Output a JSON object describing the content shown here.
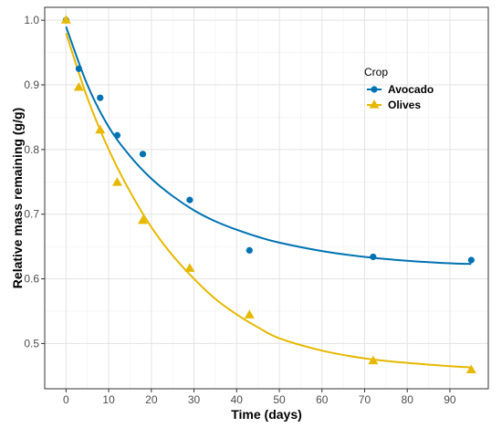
{
  "chart_data": {
    "type": "scatter",
    "title": "",
    "xlabel": "Time (days)",
    "ylabel": "Relative mass remaining (g/g)",
    "xlim": [
      -5,
      99
    ],
    "ylim": [
      0.43,
      1.02
    ],
    "x_ticks": [
      0,
      10,
      20,
      30,
      40,
      50,
      60,
      70,
      80,
      90
    ],
    "y_ticks": [
      0.5,
      0.6,
      0.7,
      0.8,
      0.9,
      1.0
    ],
    "x_tick_labels": [
      "0",
      "10",
      "20",
      "30",
      "40",
      "50",
      "60",
      "70",
      "80",
      "90"
    ],
    "y_tick_labels": [
      "0.5",
      "0.6",
      "0.7",
      "0.8",
      "0.9",
      "1.0"
    ],
    "grid": true,
    "legend": {
      "title": "Crop",
      "position": "top-right-inside"
    },
    "series": [
      {
        "name": "Avocado",
        "color": "#0072B2",
        "marker": "circle",
        "points": [
          {
            "x": 0,
            "y": 1.0
          },
          {
            "x": 3,
            "y": 0.925
          },
          {
            "x": 8,
            "y": 0.88
          },
          {
            "x": 12,
            "y": 0.822
          },
          {
            "x": 18,
            "y": 0.793
          },
          {
            "x": 29,
            "y": 0.722
          },
          {
            "x": 43,
            "y": 0.644
          },
          {
            "x": 72,
            "y": 0.634
          },
          {
            "x": 95,
            "y": 0.629
          }
        ],
        "fit": [
          {
            "x": 0,
            "y": 0.99
          },
          {
            "x": 5,
            "y": 0.9
          },
          {
            "x": 10,
            "y": 0.835
          },
          {
            "x": 15,
            "y": 0.79
          },
          {
            "x": 20,
            "y": 0.755
          },
          {
            "x": 25,
            "y": 0.728
          },
          {
            "x": 30,
            "y": 0.706
          },
          {
            "x": 35,
            "y": 0.689
          },
          {
            "x": 40,
            "y": 0.676
          },
          {
            "x": 45,
            "y": 0.665
          },
          {
            "x": 50,
            "y": 0.656
          },
          {
            "x": 60,
            "y": 0.643
          },
          {
            "x": 70,
            "y": 0.634
          },
          {
            "x": 80,
            "y": 0.628
          },
          {
            "x": 90,
            "y": 0.624
          },
          {
            "x": 95,
            "y": 0.623
          }
        ]
      },
      {
        "name": "Olives",
        "color": "#E7B800",
        "marker": "triangle",
        "points": [
          {
            "x": 0,
            "y": 1.0
          },
          {
            "x": 3,
            "y": 0.896
          },
          {
            "x": 8,
            "y": 0.83
          },
          {
            "x": 12,
            "y": 0.749
          },
          {
            "x": 18,
            "y": 0.69
          },
          {
            "x": 29,
            "y": 0.616
          },
          {
            "x": 43,
            "y": 0.544
          },
          {
            "x": 72,
            "y": 0.473
          },
          {
            "x": 95,
            "y": 0.459
          }
        ],
        "fit": [
          {
            "x": 0,
            "y": 0.98
          },
          {
            "x": 5,
            "y": 0.88
          },
          {
            "x": 10,
            "y": 0.8
          },
          {
            "x": 15,
            "y": 0.735
          },
          {
            "x": 20,
            "y": 0.68
          },
          {
            "x": 25,
            "y": 0.636
          },
          {
            "x": 30,
            "y": 0.6
          },
          {
            "x": 35,
            "y": 0.569
          },
          {
            "x": 40,
            "y": 0.545
          },
          {
            "x": 45,
            "y": 0.525
          },
          {
            "x": 50,
            "y": 0.508
          },
          {
            "x": 60,
            "y": 0.489
          },
          {
            "x": 70,
            "y": 0.477
          },
          {
            "x": 80,
            "y": 0.47
          },
          {
            "x": 90,
            "y": 0.465
          },
          {
            "x": 95,
            "y": 0.463
          }
        ]
      }
    ]
  }
}
